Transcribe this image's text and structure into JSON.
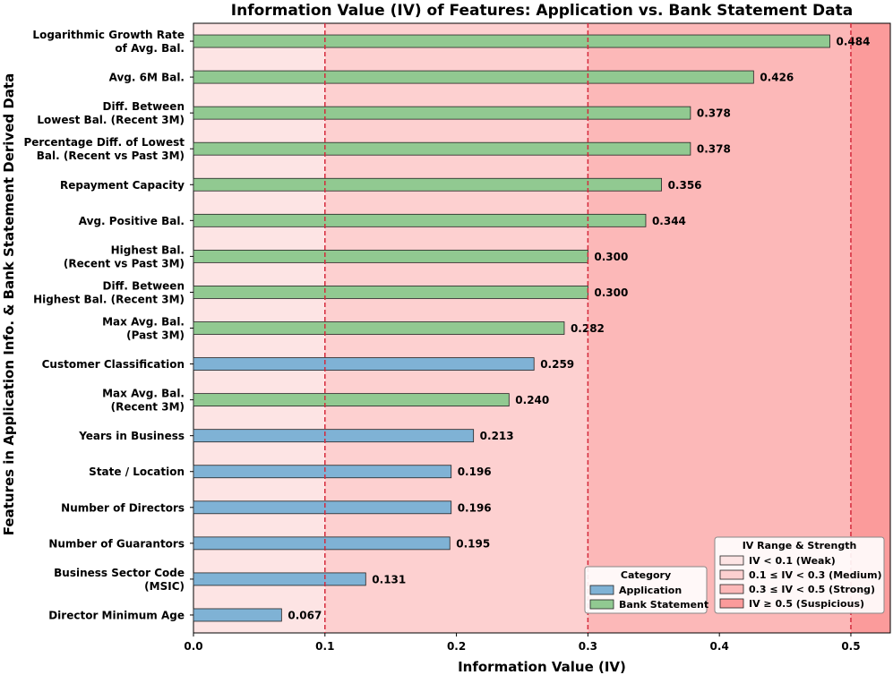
{
  "chart_data": {
    "type": "bar",
    "orientation": "horizontal",
    "title": "Information Value (IV) of Features: Application vs. Bank Statement Data",
    "xlabel": "Information Value (IV)",
    "ylabel": "Features in Application Info. & Bank Statement Derived Data",
    "xlim": [
      0,
      0.53
    ],
    "xticks": [
      "0.0",
      "0.1",
      "0.2",
      "0.3",
      "0.4",
      "0.5"
    ],
    "xtick_values": [
      0.0,
      0.1,
      0.2,
      0.3,
      0.4,
      0.5
    ],
    "thresholds": [
      0.1,
      0.3,
      0.5
    ],
    "bars": [
      {
        "label": [
          "Logarithmic Growth Rate",
          "of Avg. Bal."
        ],
        "value": 0.484,
        "value_label": "0.484",
        "category": "Bank Statement"
      },
      {
        "label": [
          "Avg. 6M Bal."
        ],
        "value": 0.426,
        "value_label": "0.426",
        "category": "Bank Statement"
      },
      {
        "label": [
          "Diff. Between",
          "Lowest Bal. (Recent 3M)"
        ],
        "value": 0.378,
        "value_label": "0.378",
        "category": "Bank Statement"
      },
      {
        "label": [
          "Percentage Diff. of Lowest",
          "Bal. (Recent vs Past 3M)"
        ],
        "value": 0.378,
        "value_label": "0.378",
        "category": "Bank Statement"
      },
      {
        "label": [
          "Repayment Capacity"
        ],
        "value": 0.356,
        "value_label": "0.356",
        "category": "Bank Statement"
      },
      {
        "label": [
          "Avg. Positive Bal."
        ],
        "value": 0.344,
        "value_label": "0.344",
        "category": "Bank Statement"
      },
      {
        "label": [
          "Highest Bal.",
          "(Recent vs Past 3M)"
        ],
        "value": 0.3,
        "value_label": "0.300",
        "category": "Bank Statement"
      },
      {
        "label": [
          "Diff. Between",
          "Highest Bal. (Recent 3M)"
        ],
        "value": 0.3,
        "value_label": "0.300",
        "category": "Bank Statement"
      },
      {
        "label": [
          "Max Avg. Bal.",
          "(Past 3M)"
        ],
        "value": 0.282,
        "value_label": "0.282",
        "category": "Bank Statement"
      },
      {
        "label": [
          "Customer Classification"
        ],
        "value": 0.259,
        "value_label": "0.259",
        "category": "Application"
      },
      {
        "label": [
          "Max Avg. Bal.",
          "(Recent 3M)"
        ],
        "value": 0.24,
        "value_label": "0.240",
        "category": "Bank Statement"
      },
      {
        "label": [
          "Years in Business"
        ],
        "value": 0.213,
        "value_label": "0.213",
        "category": "Application"
      },
      {
        "label": [
          "State / Location"
        ],
        "value": 0.196,
        "value_label": "0.196",
        "category": "Application"
      },
      {
        "label": [
          "Number of Directors"
        ],
        "value": 0.196,
        "value_label": "0.196",
        "category": "Application"
      },
      {
        "label": [
          "Number of Guarantors"
        ],
        "value": 0.195,
        "value_label": "0.195",
        "category": "Application"
      },
      {
        "label": [
          "Business Sector Code",
          "(MSIC)"
        ],
        "value": 0.131,
        "value_label": "0.131",
        "category": "Application"
      },
      {
        "label": [
          "Director Minimum Age"
        ],
        "value": 0.067,
        "value_label": "0.067",
        "category": "Application"
      }
    ],
    "category_legend": {
      "title": "Category",
      "placement": "bottom-right",
      "items": [
        {
          "name": "Application",
          "color": "#7fb2d5"
        },
        {
          "name": "Bank Statement",
          "color": "#91c991"
        }
      ]
    },
    "range_legend": {
      "title": "IV Range & Strength",
      "placement": "bottom-right",
      "items": [
        {
          "name": "IV < 0.1 (Weak)",
          "color": "#fde4e4"
        },
        {
          "name": "0.1 ≤ IV < 0.3 (Medium)",
          "color": "#fdd0d0"
        },
        {
          "name": "0.3 ≤ IV < 0.5 (Strong)",
          "color": "#fcb8b8"
        },
        {
          "name": "IV ≥ 0.5 (Suspicious)",
          "color": "#fb9b9b"
        }
      ]
    },
    "colors": {
      "application": "#7fb2d5",
      "bank_statement": "#91c991",
      "threshold_line": "#d42a3c",
      "zone_weak": "#fde4e4",
      "zone_medium": "#fdd0d0",
      "zone_strong": "#fcb8b8",
      "zone_suspicious": "#fb9b9b"
    }
  }
}
